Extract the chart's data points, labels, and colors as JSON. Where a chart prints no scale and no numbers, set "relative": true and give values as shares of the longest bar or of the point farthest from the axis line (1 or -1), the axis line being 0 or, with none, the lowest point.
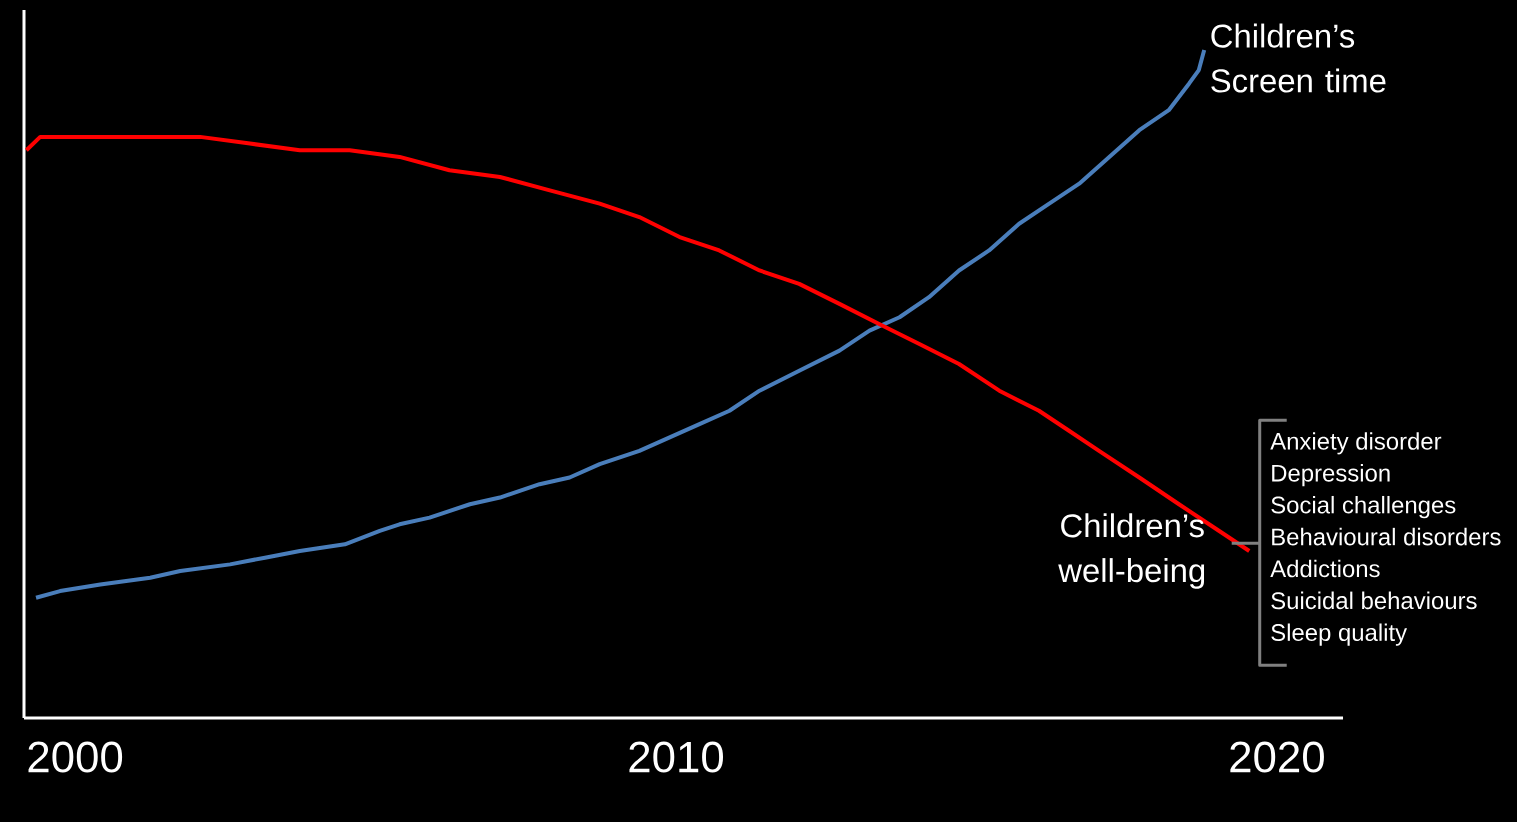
{
  "chart_data": {
    "type": "line",
    "relative": true,
    "xlim": [
      1999.15,
      2021.1
    ],
    "xticks": [
      2000,
      2010,
      2020
    ],
    "series": [
      {
        "name": "Children’s Screen time",
        "color": "#4a7ebb",
        "x": [
          1999.35,
          1999.75,
          2000.42,
          2001.25,
          2001.75,
          2002.58,
          2003.16,
          2003.74,
          2004.49,
          2005.07,
          2005.4,
          2005.9,
          2006.57,
          2007.07,
          2007.73,
          2008.23,
          2008.73,
          2009.39,
          2009.89,
          2010.39,
          2010.89,
          2011.39,
          2012.05,
          2012.72,
          2013.22,
          2013.72,
          2014.21,
          2014.71,
          2015.21,
          2015.71,
          2016.21,
          2016.71,
          2017.21,
          2017.71,
          2018.2,
          2018.54,
          2018.7,
          2018.79
        ],
        "values": [
          0.18,
          0.19,
          0.2,
          0.21,
          0.22,
          0.23,
          0.24,
          0.25,
          0.26,
          0.28,
          0.29,
          0.3,
          0.32,
          0.33,
          0.35,
          0.36,
          0.38,
          0.4,
          0.42,
          0.44,
          0.46,
          0.49,
          0.52,
          0.55,
          0.58,
          0.6,
          0.63,
          0.67,
          0.7,
          0.74,
          0.77,
          0.8,
          0.84,
          0.88,
          0.91,
          0.95,
          0.97,
          1.0
        ]
      },
      {
        "name": "Children’s well-being",
        "color": "#ff0000",
        "x": [
          1999.19,
          1999.42,
          2000.08,
          2000.91,
          2001.58,
          2002.08,
          2002.91,
          2003.74,
          2004.57,
          2005.4,
          2006.23,
          2007.07,
          2007.9,
          2008.73,
          2009.39,
          2010.06,
          2010.72,
          2011.39,
          2012.05,
          2012.72,
          2013.38,
          2014.05,
          2014.71,
          2015.38,
          2016.04,
          2016.54,
          2017.04,
          2017.71,
          2018.37,
          2019.04,
          2019.54
        ],
        "values": [
          0.85,
          0.87,
          0.87,
          0.87,
          0.87,
          0.87,
          0.86,
          0.85,
          0.85,
          0.84,
          0.82,
          0.81,
          0.79,
          0.77,
          0.75,
          0.72,
          0.7,
          0.67,
          0.65,
          0.62,
          0.59,
          0.56,
          0.53,
          0.49,
          0.46,
          0.43,
          0.4,
          0.36,
          0.32,
          0.28,
          0.25
        ]
      }
    ],
    "annotations": [
      "Anxiety disorder",
      "Depression",
      "Social challenges",
      "Behavioural disorders",
      "Addictions",
      "Suicidal behaviours",
      "Sleep quality"
    ]
  }
}
